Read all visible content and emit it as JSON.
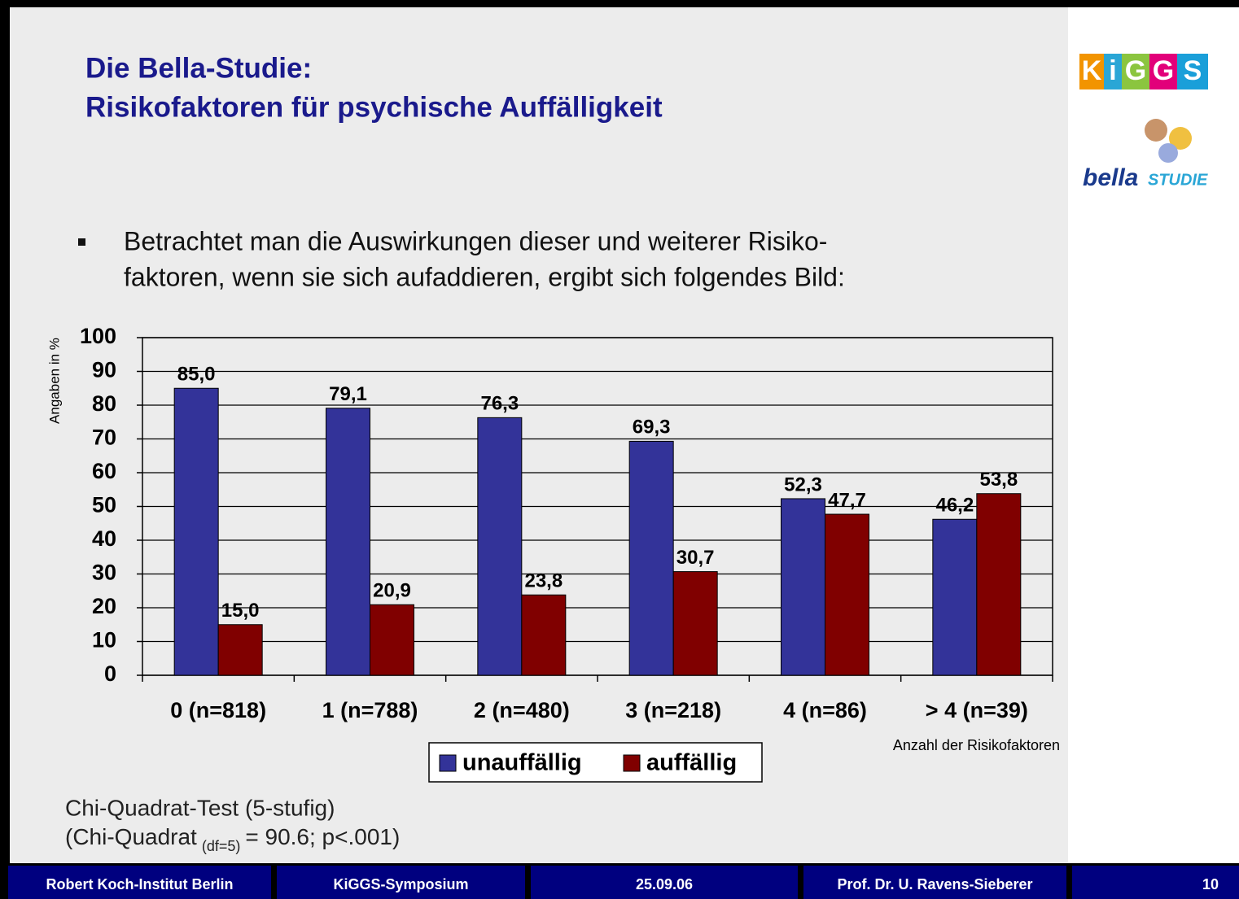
{
  "header": {
    "title": [
      "Die Bella-Studie:",
      "Risikofaktoren für psychische Auffälligkeit"
    ]
  },
  "logos": {
    "kiggs": [
      "K",
      "i",
      "G",
      "G",
      "S"
    ],
    "bella": [
      "bella",
      "STUDIE"
    ]
  },
  "bullet": [
    "Betrachtet man die Auswirkungen dieser und weiterer Risiko-",
    "faktoren, wenn sie sich aufaddieren, ergibt sich folgendes Bild:"
  ],
  "chart_data": {
    "type": "bar",
    "y_label": "Angaben in %",
    "x_label": "Anzahl der Risikofaktoren",
    "categories": [
      "0 (n=818)",
      "1 (n=788)",
      "2 (n=480)",
      "3 (n=218)",
      "4 (n=86)",
      "> 4 (n=39)"
    ],
    "series": [
      {
        "name": "unauffällig",
        "color": "#333399",
        "values": [
          85.0,
          79.1,
          76.3,
          69.3,
          52.3,
          46.2
        ],
        "value_labels": [
          "85,0",
          "79,1",
          "76,3",
          "69,3",
          "52,3",
          "46,2"
        ]
      },
      {
        "name": "auffällig",
        "color": "#800000",
        "values": [
          15.0,
          20.9,
          23.8,
          30.7,
          47.7,
          53.8
        ],
        "value_labels": [
          "15,0",
          "20,9",
          "23,8",
          "30,7",
          "47,7",
          "53,8"
        ]
      }
    ],
    "ylim": [
      0,
      100
    ],
    "yticks": [
      0,
      10,
      20,
      30,
      40,
      50,
      60,
      70,
      80,
      90,
      100
    ],
    "grid": true,
    "legend": "bottom"
  },
  "notes": {
    "line1": "Chi-Quadrat-Test (5-stufig)",
    "line2": [
      "(Chi-Quadrat",
      "(df=5)",
      "= 90.6; p<.001)"
    ]
  },
  "footer": [
    "Robert Koch-Institut Berlin",
    "KiGGS-Symposium",
    "25.09.06",
    "Prof. Dr. U. Ravens-Sieberer",
    "10"
  ]
}
